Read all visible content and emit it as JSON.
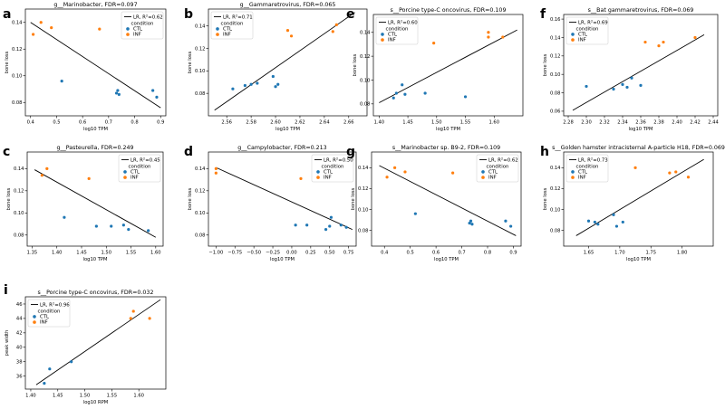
{
  "colors": {
    "CTL": "#1f77b4",
    "INF": "#ff7f0e",
    "fit": "#000000",
    "axis": "#000000",
    "legend_border": "#cccccc"
  },
  "legend": {
    "fit_prefix": "LR, R",
    "condition_title": "condition",
    "groups": [
      "CTL",
      "INF"
    ]
  },
  "chart_data": [
    {
      "id": "a",
      "letter": "a",
      "type": "scatter",
      "title": "g__Marinobacter, FDR=0.097",
      "xlabel": "log10 TPM",
      "ylabel": "bone loss",
      "r2_label": "=0.62",
      "xlim": [
        0.38,
        0.92
      ],
      "ylim": [
        0.07,
        0.15
      ],
      "xticks": [
        0.4,
        0.5,
        0.6,
        0.7,
        0.8,
        0.9
      ],
      "yticks": [
        0.08,
        0.1,
        0.12,
        0.14
      ],
      "xtick_labels": [
        "0.4",
        "0.5",
        "0.6",
        "0.7",
        "0.8",
        "0.9"
      ],
      "ytick_labels": [
        "0.08",
        "0.10",
        "0.12",
        "0.14"
      ],
      "fit_line": [
        [
          0.4,
          0.14
        ],
        [
          0.9,
          0.076
        ]
      ],
      "points": {
        "CTL": [
          [
            0.52,
            0.096
          ],
          [
            0.73,
            0.087
          ],
          [
            0.735,
            0.089
          ],
          [
            0.74,
            0.086
          ],
          [
            0.87,
            0.089
          ],
          [
            0.885,
            0.084
          ]
        ],
        "INF": [
          [
            0.41,
            0.131
          ],
          [
            0.44,
            0.14
          ],
          [
            0.48,
            0.136
          ],
          [
            0.665,
            0.135
          ]
        ]
      }
    },
    {
      "id": "b",
      "letter": "b",
      "type": "scatter",
      "title": "g__Gammaretrovirus, FDR=0.065",
      "xlabel": "log10 TPM",
      "ylabel": "bone loss",
      "r2_label": "=0.71",
      "xlim": [
        2.545,
        2.675
      ],
      "ylim": [
        0.06,
        0.155
      ],
      "xticks": [
        2.56,
        2.58,
        2.6,
        2.62,
        2.64,
        2.66
      ],
      "yticks": [
        0.08,
        0.1,
        0.12,
        0.14
      ],
      "xtick_labels": [
        "2.56",
        "2.58",
        "2.60",
        "2.62",
        "2.64",
        "2.66"
      ],
      "ytick_labels": [
        "0.08",
        "0.10",
        "0.12",
        "0.14"
      ],
      "fit_line": [
        [
          2.55,
          0.065
        ],
        [
          2.665,
          0.152
        ]
      ],
      "points": {
        "CTL": [
          [
            2.565,
            0.084
          ],
          [
            2.575,
            0.087
          ],
          [
            2.58,
            0.088
          ],
          [
            2.585,
            0.089
          ],
          [
            2.598,
            0.095
          ],
          [
            2.6,
            0.086
          ],
          [
            2.602,
            0.088
          ]
        ],
        "INF": [
          [
            2.61,
            0.136
          ],
          [
            2.613,
            0.131
          ],
          [
            2.647,
            0.135
          ],
          [
            2.65,
            0.141
          ]
        ]
      }
    },
    {
      "id": "e",
      "letter": "e",
      "type": "scatter",
      "title": "s__Porcine type-C oncovirus, FDR=0.109",
      "xlabel": "log10 TPM",
      "ylabel": "bone loss",
      "r2_label": "=0.60",
      "xlim": [
        1.39,
        1.65
      ],
      "ylim": [
        0.07,
        0.155
      ],
      "xticks": [
        1.4,
        1.45,
        1.5,
        1.55,
        1.6
      ],
      "yticks": [
        0.08,
        0.1,
        0.12,
        0.14
      ],
      "xtick_labels": [
        "1.40",
        "1.45",
        "1.50",
        "1.55",
        "1.60"
      ],
      "ytick_labels": [
        "0.08",
        "0.10",
        "0.12",
        "0.14"
      ],
      "fit_line": [
        [
          1.4,
          0.081
        ],
        [
          1.64,
          0.142
        ]
      ],
      "points": {
        "CTL": [
          [
            1.425,
            0.085
          ],
          [
            1.43,
            0.089
          ],
          [
            1.44,
            0.096
          ],
          [
            1.445,
            0.088
          ],
          [
            1.48,
            0.089
          ],
          [
            1.55,
            0.086
          ]
        ],
        "INF": [
          [
            1.495,
            0.131
          ],
          [
            1.59,
            0.14
          ],
          [
            1.59,
            0.136
          ],
          [
            1.615,
            0.136
          ]
        ]
      }
    },
    {
      "id": "f",
      "letter": "f",
      "type": "scatter",
      "title": "s__Bat gammaretrovirus, FDR=0.069",
      "xlabel": "log10 TPM",
      "ylabel": "bone loss",
      "r2_label": "=0.69",
      "xlim": [
        2.275,
        2.445
      ],
      "ylim": [
        0.055,
        0.165
      ],
      "xticks": [
        2.28,
        2.3,
        2.32,
        2.34,
        2.36,
        2.38,
        2.4,
        2.42,
        2.44
      ],
      "yticks": [
        0.06,
        0.08,
        0.1,
        0.12,
        0.14,
        0.16
      ],
      "xtick_labels": [
        "2.28",
        "2.30",
        "2.32",
        "2.34",
        "2.36",
        "2.38",
        "2.40",
        "2.42",
        "2.44"
      ],
      "ytick_labels": [
        "0.06",
        "0.08",
        "0.10",
        "0.12",
        "0.14",
        "0.16"
      ],
      "fit_line": [
        [
          2.285,
          0.061
        ],
        [
          2.43,
          0.143
        ]
      ],
      "points": {
        "CTL": [
          [
            2.3,
            0.087
          ],
          [
            2.33,
            0.084
          ],
          [
            2.34,
            0.089
          ],
          [
            2.345,
            0.086
          ],
          [
            2.35,
            0.096
          ],
          [
            2.36,
            0.088
          ]
        ],
        "INF": [
          [
            2.365,
            0.135
          ],
          [
            2.38,
            0.131
          ],
          [
            2.385,
            0.135
          ],
          [
            2.42,
            0.14
          ]
        ]
      }
    },
    {
      "id": "c",
      "letter": "c",
      "type": "scatter",
      "title": "g__Pasteurella, FDR=0.249",
      "xlabel": "log10 TPM",
      "ylabel": "bone loss",
      "r2_label": "=0.45",
      "xlim": [
        1.34,
        1.615
      ],
      "ylim": [
        0.07,
        0.155
      ],
      "xticks": [
        1.35,
        1.4,
        1.45,
        1.5,
        1.55,
        1.6
      ],
      "yticks": [
        0.08,
        0.1,
        0.12,
        0.14
      ],
      "xtick_labels": [
        "1.35",
        "1.40",
        "1.45",
        "1.50",
        "1.55",
        "1.60"
      ],
      "ytick_labels": [
        "0.08",
        "0.10",
        "0.12",
        "0.14"
      ],
      "fit_line": [
        [
          1.355,
          0.139
        ],
        [
          1.6,
          0.078
        ]
      ],
      "points": {
        "CTL": [
          [
            1.415,
            0.096
          ],
          [
            1.48,
            0.088
          ],
          [
            1.51,
            0.088
          ],
          [
            1.535,
            0.089
          ],
          [
            1.545,
            0.085
          ],
          [
            1.585,
            0.084
          ]
        ],
        "INF": [
          [
            1.37,
            0.134
          ],
          [
            1.38,
            0.14
          ],
          [
            1.465,
            0.131
          ]
        ]
      }
    },
    {
      "id": "d",
      "letter": "d",
      "type": "scatter",
      "title": "g__Campylobacter, FDR=0.213",
      "xlabel": "log10 TPM",
      "ylabel": "bone loss",
      "r2_label": "=0.50",
      "xlim": [
        -1.1,
        0.85
      ],
      "ylim": [
        0.07,
        0.155
      ],
      "xticks": [
        -1.0,
        -0.75,
        -0.5,
        -0.25,
        0.0,
        0.25,
        0.5,
        0.75
      ],
      "yticks": [
        0.08,
        0.1,
        0.12,
        0.14
      ],
      "xtick_labels": [
        "−1.00",
        "−0.75",
        "−0.50",
        "−0.25",
        "0.00",
        "0.25",
        "0.50",
        "0.75"
      ],
      "ytick_labels": [
        "0.08",
        "0.10",
        "0.12",
        "0.14"
      ],
      "fit_line": [
        [
          -1.0,
          0.141
        ],
        [
          0.8,
          0.085
        ]
      ],
      "points": {
        "CTL": [
          [
            0.05,
            0.089
          ],
          [
            0.2,
            0.089
          ],
          [
            0.45,
            0.085
          ],
          [
            0.5,
            0.088
          ],
          [
            0.52,
            0.096
          ],
          [
            0.65,
            0.089
          ],
          [
            0.72,
            0.087
          ]
        ],
        "INF": [
          [
            -1.0,
            0.14
          ],
          [
            -1.0,
            0.136
          ],
          [
            0.12,
            0.131
          ]
        ]
      }
    },
    {
      "id": "g",
      "letter": "g",
      "type": "scatter",
      "title": "s__Marinobacter sp. B9-2, FDR=0.109",
      "xlabel": "log10 TPM",
      "ylabel": "bone loss",
      "r2_label": "=0.62",
      "xlim": [
        0.35,
        0.93
      ],
      "ylim": [
        0.065,
        0.155
      ],
      "xticks": [
        0.4,
        0.5,
        0.6,
        0.7,
        0.8,
        0.9
      ],
      "yticks": [
        0.08,
        0.1,
        0.12,
        0.14
      ],
      "xtick_labels": [
        "0.4",
        "0.5",
        "0.6",
        "0.7",
        "0.8",
        "0.9"
      ],
      "ytick_labels": [
        "0.08",
        "0.10",
        "0.12",
        "0.14"
      ],
      "fit_line": [
        [
          0.38,
          0.142
        ],
        [
          0.91,
          0.075
        ]
      ],
      "points": {
        "CTL": [
          [
            0.52,
            0.096
          ],
          [
            0.73,
            0.087
          ],
          [
            0.735,
            0.089
          ],
          [
            0.74,
            0.086
          ],
          [
            0.87,
            0.089
          ],
          [
            0.89,
            0.084
          ]
        ],
        "INF": [
          [
            0.41,
            0.131
          ],
          [
            0.44,
            0.14
          ],
          [
            0.48,
            0.136
          ],
          [
            0.665,
            0.135
          ]
        ]
      }
    },
    {
      "id": "h",
      "letter": "h",
      "type": "scatter",
      "title": "s__Golden hamster intracisternal A-particle H18, FDR=0.069",
      "xlabel": "log10 TPM",
      "ylabel": "bone loss",
      "r2_label": "=0.73",
      "xlim": [
        1.61,
        1.85
      ],
      "ylim": [
        0.065,
        0.155
      ],
      "xticks": [
        1.65,
        1.7,
        1.75,
        1.8
      ],
      "yticks": [
        0.08,
        0.1,
        0.12,
        0.14
      ],
      "xtick_labels": [
        "1.65",
        "1.70",
        "1.75",
        "1.80"
      ],
      "ytick_labels": [
        "0.08",
        "0.10",
        "0.12",
        "0.14"
      ],
      "fit_line": [
        [
          1.63,
          0.075
        ],
        [
          1.835,
          0.148
        ]
      ],
      "points": {
        "CTL": [
          [
            1.65,
            0.089
          ],
          [
            1.66,
            0.088
          ],
          [
            1.665,
            0.086
          ],
          [
            1.69,
            0.095
          ],
          [
            1.695,
            0.084
          ],
          [
            1.705,
            0.088
          ]
        ],
        "INF": [
          [
            1.725,
            0.14
          ],
          [
            1.78,
            0.135
          ],
          [
            1.79,
            0.136
          ],
          [
            1.81,
            0.131
          ]
        ]
      }
    },
    {
      "id": "i",
      "letter": "i",
      "type": "scatter",
      "title": "s__Porcine type-C oncovirus, FDR=0.032",
      "xlabel": "log10 RPM",
      "ylabel": "peak width",
      "r2_label": "=0.96",
      "xlim": [
        1.39,
        1.65
      ],
      "ylim": [
        34.2,
        47.0
      ],
      "xticks": [
        1.4,
        1.45,
        1.5,
        1.55,
        1.6
      ],
      "yticks": [
        36,
        38,
        40,
        42,
        44,
        46
      ],
      "xtick_labels": [
        "1.40",
        "1.45",
        "1.50",
        "1.55",
        "1.60"
      ],
      "ytick_labels": [
        "36",
        "38",
        "40",
        "42",
        "44",
        "46"
      ],
      "fit_line": [
        [
          1.41,
          34.8
        ],
        [
          1.64,
          46.6
        ]
      ],
      "points": {
        "CTL": [
          [
            1.425,
            35.0
          ],
          [
            1.435,
            37.0
          ],
          [
            1.475,
            38.0
          ]
        ],
        "INF": [
          [
            1.585,
            44.0
          ],
          [
            1.59,
            45.0
          ],
          [
            1.62,
            44.0
          ]
        ]
      }
    }
  ]
}
